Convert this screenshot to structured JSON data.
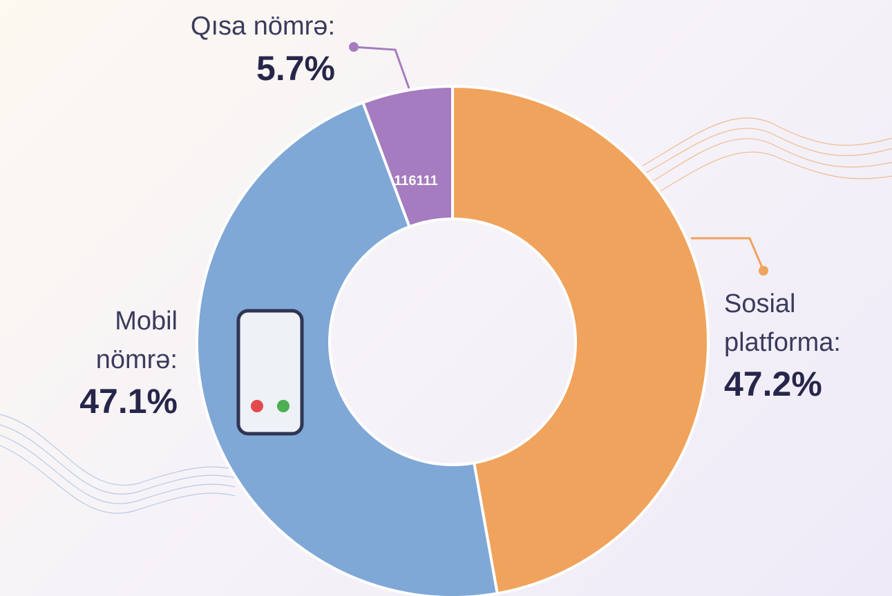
{
  "chart_data": {
    "type": "donut",
    "categories": [
      "Sosial platforma:",
      "Mobil nömrə:",
      "Qısa nömrə:"
    ],
    "values": [
      47.2,
      47.1,
      5.7
    ],
    "value_labels": [
      "47.2%",
      "47.1%",
      "5.7%"
    ],
    "colors": [
      "#f0a35c",
      "#7fa8d6",
      "#a57cbf"
    ],
    "annotation": "116111"
  }
}
